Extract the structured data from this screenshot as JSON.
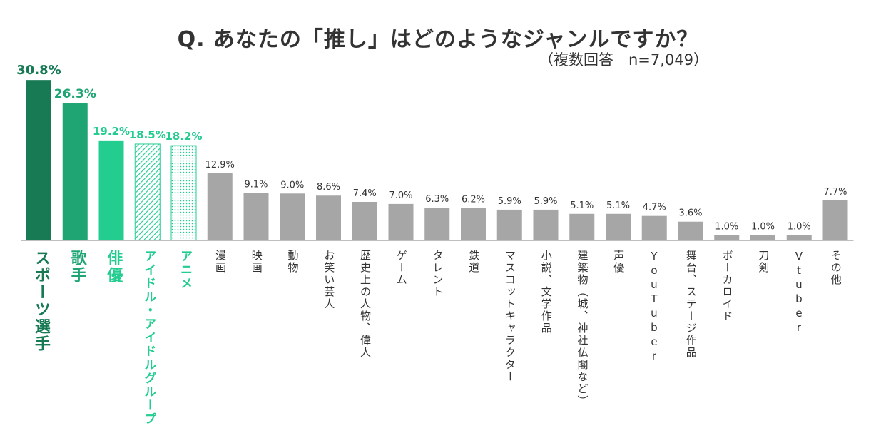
{
  "chart_data": {
    "type": "bar",
    "title": "Q. あなたの「推し」はどのようなジャンルですか？",
    "subtitle": "（複数回答　n=7,049）",
    "xlabel": "",
    "ylabel": "",
    "ylim": [
      0,
      31
    ],
    "categories": [
      "スポーツ選手",
      "歌手",
      "俳優",
      "アイドル・アイドルグループ",
      "アニメ",
      "漫画",
      "映画",
      "動物",
      "お笑い芸人",
      "歴史上の人物、偉人",
      "ゲーム",
      "タレント",
      "鉄道",
      "マスコットキャラクター",
      "小説、文学作品",
      "建築物（城、神社仏閣など）",
      "声優",
      "YouTuber",
      "舞台、ステージ作品",
      "ボーカロイド",
      "刀剣",
      "Vtuber",
      "その他"
    ],
    "values": [
      30.8,
      26.3,
      19.2,
      18.5,
      18.2,
      12.9,
      9.1,
      9.0,
      8.6,
      7.4,
      7.0,
      6.3,
      6.2,
      5.9,
      5.9,
      5.1,
      5.1,
      4.7,
      3.6,
      1.0,
      1.0,
      1.0,
      7.7
    ],
    "value_labels": [
      "30.8%",
      "26.3%",
      "19.2%",
      "18.5%",
      "18.2%",
      "12.9%",
      "9.1%",
      "9.0%",
      "8.6%",
      "7.4%",
      "7.0%",
      "6.3%",
      "6.2%",
      "5.9%",
      "5.9%",
      "5.1%",
      "5.1%",
      "4.7%",
      "3.6%",
      "1.0%",
      "1.0%",
      "1.0%",
      "7.7%"
    ],
    "bar_fills": [
      "solid",
      "solid",
      "solid",
      "hatched",
      "dotted",
      "solid",
      "solid",
      "solid",
      "solid",
      "solid",
      "solid",
      "solid",
      "solid",
      "solid",
      "solid",
      "solid",
      "solid",
      "solid",
      "solid",
      "solid",
      "solid",
      "solid",
      "solid"
    ],
    "colors": [
      "#177a54",
      "#1fa574",
      "#23cc8f",
      "#23cc8f",
      "#23cc8f",
      "#a6a6a6",
      "#a6a6a6",
      "#a6a6a6",
      "#a6a6a6",
      "#a6a6a6",
      "#a6a6a6",
      "#a6a6a6",
      "#a6a6a6",
      "#a6a6a6",
      "#a6a6a6",
      "#a6a6a6",
      "#a6a6a6",
      "#a6a6a6",
      "#a6a6a6",
      "#a6a6a6",
      "#a6a6a6",
      "#a6a6a6",
      "#a6a6a6"
    ],
    "label_colors": [
      "#177a54",
      "#1fa574",
      "#23cc8f",
      "#23cc8f",
      "#23cc8f",
      "#333333",
      "#333333",
      "#333333",
      "#333333",
      "#333333",
      "#333333",
      "#333333",
      "#333333",
      "#333333",
      "#333333",
      "#333333",
      "#333333",
      "#333333",
      "#333333",
      "#333333",
      "#333333",
      "#333333",
      "#333333"
    ],
    "highlight_count": 5,
    "grid": false
  }
}
